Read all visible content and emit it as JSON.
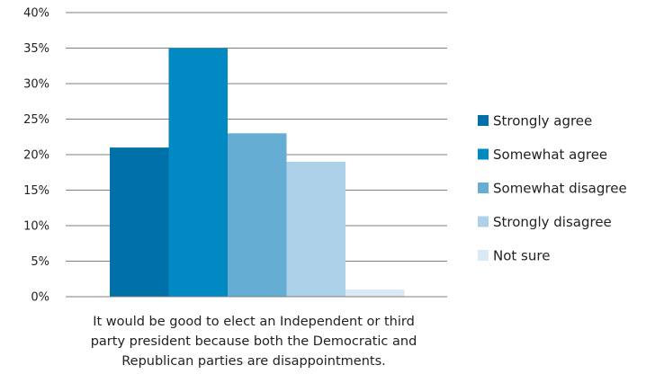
{
  "chart_data": {
    "type": "bar",
    "categories": [
      "It would be good to elect an Independent or third party president because both the Democratic and Republican parties are disappointments."
    ],
    "xlabel_lines": [
      "It would be good to elect an Independent or third",
      "party president because both the Democratic and",
      "Republican parties are disappointments."
    ],
    "series": [
      {
        "name": "Strongly agree",
        "values": [
          21
        ],
        "color": "#0070a8"
      },
      {
        "name": "Somewhat agree",
        "values": [
          35
        ],
        "color": "#0089c2"
      },
      {
        "name": "Somewhat disagree",
        "values": [
          23
        ],
        "color": "#66add3"
      },
      {
        "name": "Strongly disagree",
        "values": [
          19
        ],
        "color": "#acd1e9"
      },
      {
        "name": "Not sure",
        "values": [
          1
        ],
        "color": "#d9eaf6"
      }
    ],
    "ylim": [
      0,
      40
    ],
    "yticks": [
      0,
      5,
      10,
      15,
      20,
      25,
      30,
      35,
      40
    ],
    "ytick_labels": [
      "0%",
      "5%",
      "10%",
      "15%",
      "20%",
      "25%",
      "30%",
      "35%",
      "40%"
    ],
    "grid": true,
    "legend_position": "right",
    "title": "",
    "ylabel": ""
  }
}
